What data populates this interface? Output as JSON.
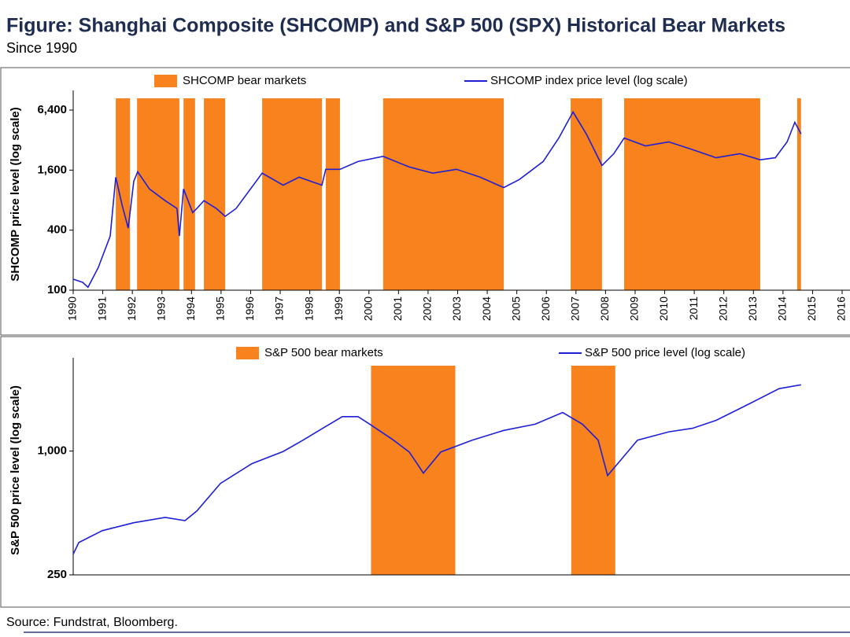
{
  "title": "Figure: Shanghai Composite (SHCOMP) and S&P 500 (SPX) Historical Bear Markets",
  "subtitle": "Since 1990",
  "source": "Source: Fundstrat, Bloomberg.",
  "chart_data": [
    {
      "type": "line",
      "ylabel": "SHCOMP price level (log scale)",
      "log_scale": true,
      "xlim": [
        1990,
        2016
      ],
      "xticks": [
        1990,
        1991,
        1992,
        1993,
        1994,
        1995,
        1996,
        1997,
        1998,
        1999,
        2000,
        2001,
        2002,
        2003,
        2004,
        2005,
        2006,
        2007,
        2008,
        2009,
        2010,
        2011,
        2012,
        2013,
        2014,
        2015,
        2016
      ],
      "ylim": [
        100,
        8400
      ],
      "yticks": [
        100,
        400,
        {
          "value": 1600,
          "label": "1,600"
        },
        {
          "value": 6400,
          "label": "6,400"
        }
      ],
      "bands": {
        "name": "SHCOMP bear markets",
        "color": "#f7821e",
        "ranges": [
          [
            1991.44,
            1991.92
          ],
          [
            1992.16,
            1993.59
          ],
          [
            1993.73,
            1994.12
          ],
          [
            1994.42,
            1995.14
          ],
          [
            1996.39,
            1998.41
          ],
          [
            1998.54,
            1999.02
          ],
          [
            2000.48,
            2004.56
          ],
          [
            2006.82,
            2007.88
          ],
          [
            2008.63,
            2013.23
          ],
          [
            2014.48,
            2014.61
          ]
        ]
      },
      "series": [
        {
          "name": "SHCOMP index price level (log scale)",
          "color": "#1f1fd6",
          "x": [
            1990.0,
            1990.32,
            1990.5,
            1990.85,
            1991.25,
            1991.44,
            1991.65,
            1991.86,
            1992.05,
            1992.18,
            1992.58,
            1993.11,
            1993.51,
            1993.59,
            1993.73,
            1994.04,
            1994.18,
            1994.42,
            1994.84,
            1995.14,
            1995.51,
            1996.39,
            1997.1,
            1997.64,
            1998.41,
            1998.54,
            1999.02,
            1999.63,
            2000.48,
            2001.36,
            2002.16,
            2002.96,
            2003.76,
            2004.56,
            2005.09,
            2005.89,
            2006.42,
            2006.9,
            2007.35,
            2007.88,
            2008.28,
            2008.63,
            2009.35,
            2010.14,
            2010.94,
            2011.74,
            2012.54,
            2013.23,
            2013.74,
            2014.14,
            2014.4,
            2014.61
          ],
          "values": [
            129,
            120,
            107,
            169,
            349,
            1360,
            720,
            420,
            1240,
            1540,
            1035,
            790,
            660,
            349,
            1035,
            600,
            660,
            790,
            660,
            550,
            660,
            1490,
            1130,
            1360,
            1130,
            1630,
            1630,
            1950,
            2200,
            1720,
            1490,
            1630,
            1360,
            1070,
            1290,
            1950,
            3360,
            6120,
            3680,
            1780,
            2340,
            3360,
            2800,
            3070,
            2570,
            2130,
            2340,
            2030,
            2130,
            3070,
            4830,
            3680
          ]
        }
      ]
    },
    {
      "type": "line",
      "ylabel": "S&P 500 price level (log scale)",
      "log_scale": true,
      "xlim": [
        1990,
        2016
      ],
      "ylim": [
        250,
        2600
      ],
      "yticks": [
        250,
        {
          "value": 1000,
          "label": "1,000"
        }
      ],
      "bands": {
        "name": "S&P 500 bear markets",
        "color": "#f7821e",
        "ranges": [
          [
            2000.07,
            2002.92
          ],
          [
            2006.84,
            2008.33
          ]
        ]
      },
      "series": [
        {
          "name": "S&P 500 price level (log scale)",
          "color": "#1f1fd6",
          "x": [
            1990.0,
            1990.19,
            1990.98,
            1992.05,
            1993.11,
            1993.78,
            1994.18,
            1994.98,
            1996.04,
            1997.1,
            1997.77,
            1998.44,
            1999.1,
            1999.63,
            2000.03,
            2000.83,
            2001.36,
            2001.63,
            2001.84,
            2002.43,
            2003.49,
            2004.56,
            2005.62,
            2006.55,
            2007.22,
            2007.75,
            2008.07,
            2008.41,
            2009.08,
            2010.14,
            2010.94,
            2011.74,
            2012.8,
            2013.87,
            2014.61
          ],
          "values": [
            315,
            359,
            410,
            448,
            476,
            459,
            511,
            696,
            868,
            995,
            1130,
            1290,
            1470,
            1470,
            1350,
            1130,
            990,
            868,
            781,
            990,
            1130,
            1260,
            1350,
            1540,
            1350,
            1130,
            760,
            868,
            1130,
            1240,
            1290,
            1410,
            1680,
            2010,
            2100
          ]
        }
      ]
    }
  ]
}
